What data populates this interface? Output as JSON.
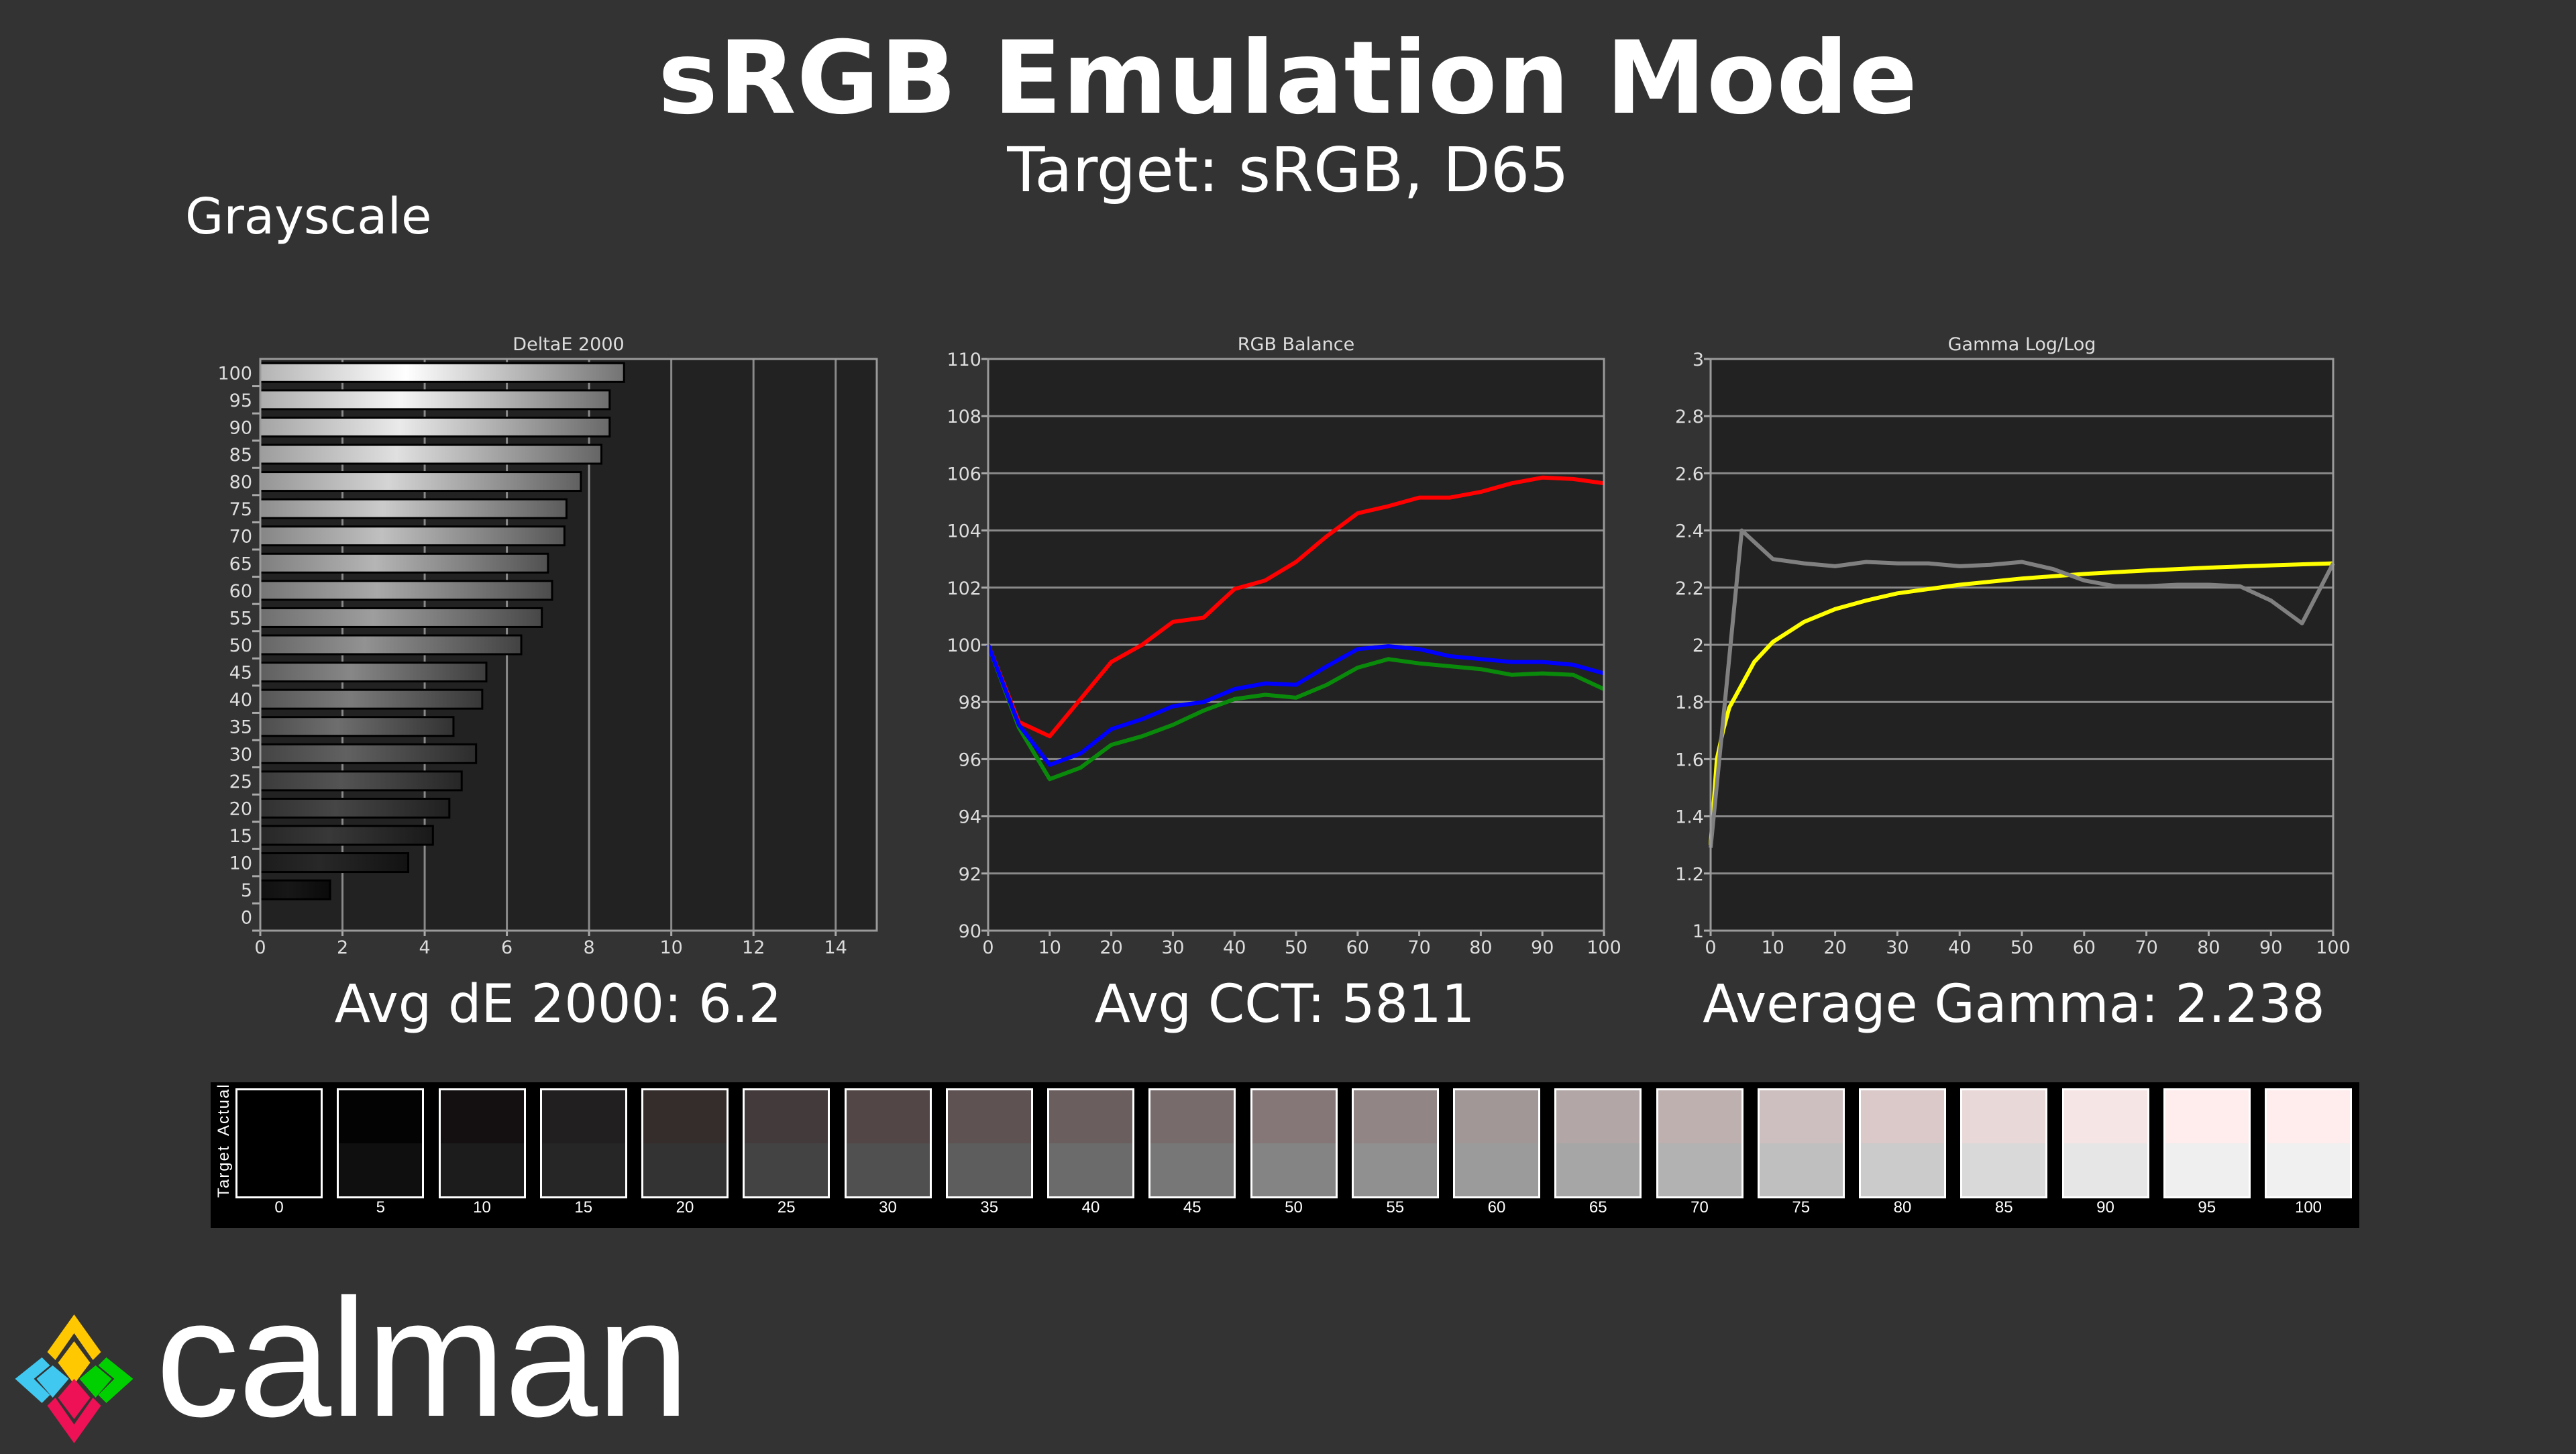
{
  "header": {
    "title": "sRGB Emulation Mode",
    "subtitle": "Target: sRGB, D65",
    "section": "Grayscale"
  },
  "summaries": {
    "de": "Avg dE 2000: 6.2",
    "cct": "Avg CCT: 5811",
    "gamma": "Average Gamma: 2.238"
  },
  "chart_data": [
    {
      "type": "bar",
      "orientation": "horizontal",
      "title": "DeltaE 2000",
      "categories": [
        "0",
        "5",
        "10",
        "15",
        "20",
        "25",
        "30",
        "35",
        "40",
        "45",
        "50",
        "55",
        "60",
        "65",
        "70",
        "75",
        "80",
        "85",
        "90",
        "95",
        "100"
      ],
      "values": [
        0,
        1.7,
        3.6,
        4.2,
        4.6,
        4.9,
        5.25,
        4.7,
        5.4,
        5.5,
        6.35,
        6.85,
        7.1,
        7.0,
        7.4,
        7.45,
        7.8,
        8.3,
        8.5,
        8.5,
        8.85
      ],
      "xlim": [
        0,
        15
      ],
      "xticks": [
        "0",
        "2",
        "4",
        "6",
        "8",
        "10",
        "12",
        "14"
      ],
      "grid": true
    },
    {
      "type": "line",
      "title": "RGB Balance",
      "x": [
        0,
        5,
        10,
        15,
        20,
        25,
        30,
        35,
        40,
        45,
        50,
        55,
        60,
        65,
        70,
        75,
        80,
        85,
        90,
        95,
        100
      ],
      "series": [
        {
          "color": "#ff0000",
          "values": [
            100,
            97.3,
            96.8,
            98.1,
            99.4,
            100.0,
            100.8,
            100.95,
            101.95,
            102.25,
            102.9,
            103.8,
            104.6,
            104.85,
            105.15,
            105.15,
            105.35,
            105.65,
            105.85,
            105.8,
            105.65
          ]
        },
        {
          "color": "#0a8a0a",
          "values": [
            100,
            97.1,
            95.3,
            95.7,
            96.5,
            96.8,
            97.2,
            97.7,
            98.1,
            98.25,
            98.15,
            98.6,
            99.2,
            99.5,
            99.35,
            99.25,
            99.15,
            98.95,
            99.0,
            98.95,
            98.45
          ]
        },
        {
          "color": "#0000ff",
          "values": [
            100,
            97.2,
            95.8,
            96.2,
            97.05,
            97.4,
            97.85,
            98.0,
            98.45,
            98.65,
            98.6,
            99.25,
            99.85,
            99.95,
            99.85,
            99.6,
            99.5,
            99.4,
            99.4,
            99.3,
            99.0
          ]
        }
      ],
      "xlim": [
        0,
        100
      ],
      "ylim": [
        90,
        110
      ],
      "xticks": [
        "0",
        "10",
        "20",
        "30",
        "40",
        "50",
        "60",
        "70",
        "80",
        "90",
        "100"
      ],
      "yticks": [
        "90",
        "92",
        "94",
        "96",
        "98",
        "100",
        "102",
        "104",
        "106",
        "108",
        "110"
      ],
      "grid": true
    },
    {
      "type": "line",
      "title": "Gamma Log/Log",
      "series": [
        {
          "color": "#ffff00",
          "x": [
            0,
            1,
            2,
            3,
            5,
            7,
            10,
            15,
            20,
            25,
            30,
            40,
            50,
            60,
            70,
            80,
            90,
            100
          ],
          "values": [
            1.3,
            1.6,
            1.7,
            1.78,
            1.86,
            1.94,
            2.01,
            2.08,
            2.125,
            2.155,
            2.18,
            2.21,
            2.232,
            2.248,
            2.26,
            2.27,
            2.278,
            2.285
          ]
        },
        {
          "color": "#808080",
          "x": [
            0,
            5,
            10,
            15,
            20,
            25,
            30,
            35,
            40,
            45,
            50,
            55,
            60,
            65,
            70,
            75,
            80,
            85,
            90,
            95,
            100
          ],
          "values": [
            1.29,
            2.4,
            2.3,
            2.285,
            2.275,
            2.29,
            2.285,
            2.285,
            2.275,
            2.28,
            2.29,
            2.265,
            2.225,
            2.205,
            2.205,
            2.21,
            2.21,
            2.205,
            2.155,
            2.075,
            2.285
          ]
        }
      ],
      "xlim": [
        0,
        100
      ],
      "ylim": [
        1,
        3
      ],
      "xticks": [
        "0",
        "10",
        "20",
        "30",
        "40",
        "50",
        "60",
        "70",
        "80",
        "90",
        "100"
      ],
      "yticks": [
        "1",
        "1.2",
        "1.4",
        "1.6",
        "1.8",
        "2",
        "2.2",
        "2.4",
        "2.6",
        "2.8",
        "3"
      ],
      "grid": true
    }
  ],
  "swatches": {
    "actual_label": "Actual",
    "target_label": "Target",
    "items": [
      {
        "label": "0",
        "actual": "#000000",
        "target": "#000000"
      },
      {
        "label": "5",
        "actual": "#030303",
        "target": "#0f0f0f"
      },
      {
        "label": "10",
        "actual": "#141011",
        "target": "#1c1c1c"
      },
      {
        "label": "15",
        "actual": "#221f20",
        "target": "#262626"
      },
      {
        "label": "20",
        "actual": "#352c2c",
        "target": "#333333"
      },
      {
        "label": "25",
        "actual": "#433a3b",
        "target": "#434343"
      },
      {
        "label": "30",
        "actual": "#524646",
        "target": "#505050"
      },
      {
        "label": "35",
        "actual": "#5e5253",
        "target": "#5d5d5d"
      },
      {
        "label": "40",
        "actual": "#6b5e5f",
        "target": "#6b6b6b"
      },
      {
        "label": "45",
        "actual": "#786b6c",
        "target": "#777777"
      },
      {
        "label": "50",
        "actual": "#857778",
        "target": "#848484"
      },
      {
        "label": "55",
        "actual": "#928586",
        "target": "#909090"
      },
      {
        "label": "60",
        "actual": "#a29797",
        "target": "#9b9b9b"
      },
      {
        "label": "65",
        "actual": "#b2a6a6",
        "target": "#a6a6a6"
      },
      {
        "label": "70",
        "actual": "#bfb0b0",
        "target": "#b2b2b2"
      },
      {
        "label": "75",
        "actual": "#cdbfbf",
        "target": "#bfbfbf"
      },
      {
        "label": "80",
        "actual": "#dbc9c9",
        "target": "#cbcbcb"
      },
      {
        "label": "85",
        "actual": "#e9d8d8",
        "target": "#d9d9d9"
      },
      {
        "label": "90",
        "actual": "#f5e5e5",
        "target": "#e6e6e6"
      },
      {
        "label": "95",
        "actual": "#ffecec",
        "target": "#efefef"
      },
      {
        "label": "100",
        "actual": "#ffecec",
        "target": "#f0f0f0"
      }
    ]
  },
  "logo": {
    "text": "calman",
    "colors": [
      "#ffc800",
      "#40c8f0",
      "#00d000",
      "#ee1155"
    ]
  }
}
